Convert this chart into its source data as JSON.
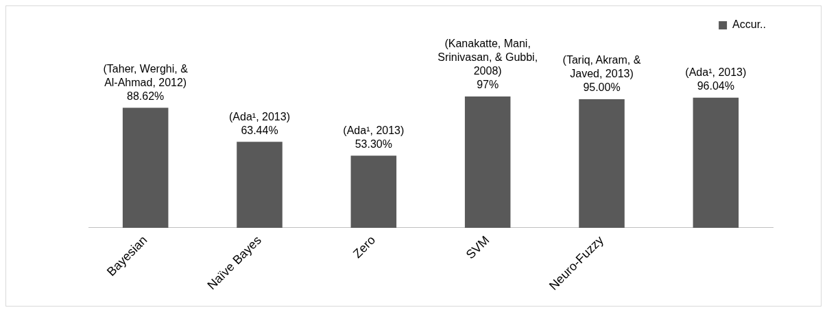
{
  "chart_data": {
    "type": "bar",
    "categories": [
      "Bayesian",
      "Naïve Bayes",
      "Zero",
      "SVM",
      "Neuro-Fuzzy",
      null
    ],
    "series": [
      {
        "name": "Accur..",
        "color": "#595959",
        "values": [
          88.62,
          63.44,
          53.3,
          97,
          95,
          96.04
        ],
        "value_labels": [
          "(Taher, Werghi, & Al-Ahmad, 2012) 88.62%",
          "(Ada¹, 2013) 63.44%",
          "(Ada¹, 2013) 53.30%",
          "(Kanakatte, Mani, Srinivasan, & Gubbi, 2008) 97%",
          "(Tariq, Akram, & Javed, 2013) 95.00%",
          "(Ada¹, 2013) 96.04%"
        ]
      }
    ],
    "grid": false,
    "legend": "top right"
  }
}
